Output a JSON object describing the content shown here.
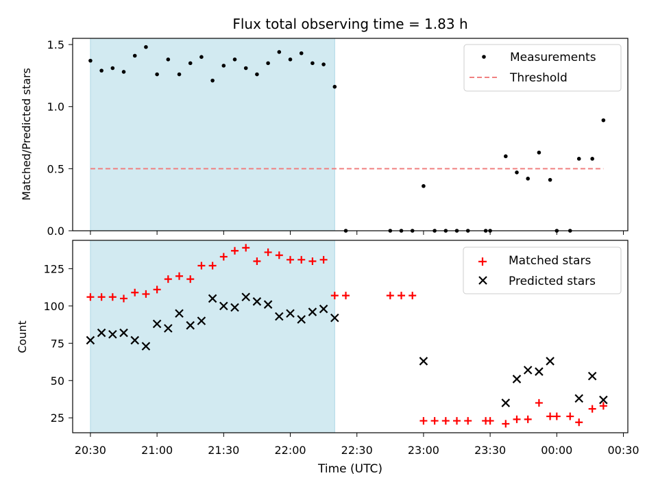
{
  "figure": {
    "title": "Flux total observing time = 1.83 h",
    "xlabel": "Time (UTC)"
  },
  "colors": {
    "shade": "#add8e6",
    "measurements": "#000000",
    "threshold": "#f08080",
    "matched": "#ff0000",
    "predicted": "#000000"
  },
  "chart_data": [
    {
      "type": "scatter",
      "panel": "top",
      "ylabel": "Matched/Predicted stars",
      "ylim": [
        0,
        1.55
      ],
      "yticks": [
        0.0,
        0.5,
        1.0,
        1.5
      ],
      "yticklabels": [
        "0.0",
        "0.5",
        "1.0",
        "1.5"
      ],
      "xlim": [
        "20:22",
        "00:32"
      ],
      "shaded_interval": [
        "20:30",
        "22:20"
      ],
      "legend": {
        "position": "top-right",
        "entries": [
          "Measurements",
          "Threshold"
        ]
      },
      "series": [
        {
          "name": "Measurements",
          "marker": "dot",
          "points": [
            [
              "20:30",
              1.37
            ],
            [
              "20:35",
              1.29
            ],
            [
              "20:40",
              1.31
            ],
            [
              "20:45",
              1.28
            ],
            [
              "20:50",
              1.41
            ],
            [
              "20:55",
              1.48
            ],
            [
              "21:00",
              1.26
            ],
            [
              "21:05",
              1.38
            ],
            [
              "21:10",
              1.26
            ],
            [
              "21:15",
              1.35
            ],
            [
              "21:20",
              1.4
            ],
            [
              "21:25",
              1.21
            ],
            [
              "21:30",
              1.33
            ],
            [
              "21:35",
              1.38
            ],
            [
              "21:40",
              1.31
            ],
            [
              "21:45",
              1.26
            ],
            [
              "21:50",
              1.35
            ],
            [
              "21:55",
              1.44
            ],
            [
              "22:00",
              1.38
            ],
            [
              "22:05",
              1.43
            ],
            [
              "22:10",
              1.35
            ],
            [
              "22:15",
              1.34
            ],
            [
              "22:20",
              1.16
            ],
            [
              "22:25",
              0.0
            ],
            [
              "22:45",
              0.0
            ],
            [
              "22:50",
              0.0
            ],
            [
              "22:55",
              0.0
            ],
            [
              "23:00",
              0.36
            ],
            [
              "23:05",
              0.0
            ],
            [
              "23:10",
              0.0
            ],
            [
              "23:15",
              0.0
            ],
            [
              "23:20",
              0.0
            ],
            [
              "23:28",
              0.0
            ],
            [
              "23:30",
              0.0
            ],
            [
              "23:37",
              0.6
            ],
            [
              "23:42",
              0.47
            ],
            [
              "23:47",
              0.42
            ],
            [
              "23:52",
              0.63
            ],
            [
              "23:57",
              0.41
            ],
            [
              "00:00",
              0.0
            ],
            [
              "00:06",
              0.0
            ],
            [
              "00:10",
              0.58
            ],
            [
              "00:16",
              0.58
            ],
            [
              "00:21",
              0.89
            ]
          ]
        },
        {
          "name": "Threshold",
          "marker": "dashed-line",
          "value": 0.5,
          "x_range": [
            "20:30",
            "00:21"
          ]
        }
      ]
    },
    {
      "type": "scatter",
      "panel": "bottom",
      "ylabel": "Count",
      "ylim": [
        15,
        144
      ],
      "yticks": [
        25,
        50,
        75,
        100,
        125
      ],
      "yticklabels": [
        "25",
        "50",
        "75",
        "100",
        "125"
      ],
      "xlim": [
        "20:22",
        "00:32"
      ],
      "xticks": [
        "20:30",
        "21:00",
        "21:30",
        "22:00",
        "22:30",
        "23:00",
        "23:30",
        "00:00",
        "00:30"
      ],
      "shaded_interval": [
        "20:30",
        "22:20"
      ],
      "legend": {
        "position": "top-right",
        "entries": [
          "Matched stars",
          "Predicted stars"
        ]
      },
      "series": [
        {
          "name": "Matched stars",
          "marker": "plus",
          "points": [
            [
              "20:30",
              106
            ],
            [
              "20:35",
              106
            ],
            [
              "20:40",
              106
            ],
            [
              "20:45",
              105
            ],
            [
              "20:50",
              109
            ],
            [
              "20:55",
              108
            ],
            [
              "21:00",
              111
            ],
            [
              "21:05",
              118
            ],
            [
              "21:10",
              120
            ],
            [
              "21:15",
              118
            ],
            [
              "21:20",
              127
            ],
            [
              "21:25",
              127
            ],
            [
              "21:30",
              133
            ],
            [
              "21:35",
              137
            ],
            [
              "21:40",
              139
            ],
            [
              "21:45",
              130
            ],
            [
              "21:50",
              136
            ],
            [
              "21:55",
              134
            ],
            [
              "22:00",
              131
            ],
            [
              "22:05",
              131
            ],
            [
              "22:10",
              130
            ],
            [
              "22:15",
              131
            ],
            [
              "22:20",
              107
            ],
            [
              "22:25",
              107
            ],
            [
              "22:45",
              107
            ],
            [
              "22:50",
              107
            ],
            [
              "22:55",
              107
            ],
            [
              "23:00",
              23
            ],
            [
              "23:05",
              23
            ],
            [
              "23:10",
              23
            ],
            [
              "23:15",
              23
            ],
            [
              "23:20",
              23
            ],
            [
              "23:28",
              23
            ],
            [
              "23:30",
              23
            ],
            [
              "23:37",
              21
            ],
            [
              "23:42",
              24
            ],
            [
              "23:47",
              24
            ],
            [
              "23:52",
              35
            ],
            [
              "23:57",
              26
            ],
            [
              "00:00",
              26
            ],
            [
              "00:06",
              26
            ],
            [
              "00:10",
              22
            ],
            [
              "00:16",
              31
            ],
            [
              "00:21",
              33
            ]
          ]
        },
        {
          "name": "Predicted stars",
          "marker": "x",
          "points": [
            [
              "20:30",
              77
            ],
            [
              "20:35",
              82
            ],
            [
              "20:40",
              81
            ],
            [
              "20:45",
              82
            ],
            [
              "20:50",
              77
            ],
            [
              "20:55",
              73
            ],
            [
              "21:00",
              88
            ],
            [
              "21:05",
              85
            ],
            [
              "21:10",
              95
            ],
            [
              "21:15",
              87
            ],
            [
              "21:20",
              90
            ],
            [
              "21:25",
              105
            ],
            [
              "21:30",
              100
            ],
            [
              "21:35",
              99
            ],
            [
              "21:40",
              106
            ],
            [
              "21:45",
              103
            ],
            [
              "21:50",
              101
            ],
            [
              "21:55",
              93
            ],
            [
              "22:00",
              95
            ],
            [
              "22:05",
              91
            ],
            [
              "22:10",
              96
            ],
            [
              "22:15",
              98
            ],
            [
              "22:20",
              92
            ],
            [
              "23:00",
              63
            ],
            [
              "23:37",
              35
            ],
            [
              "23:42",
              51
            ],
            [
              "23:47",
              57
            ],
            [
              "23:52",
              56
            ],
            [
              "23:57",
              63
            ],
            [
              "00:10",
              38
            ],
            [
              "00:16",
              53
            ],
            [
              "00:21",
              37
            ]
          ]
        }
      ]
    }
  ]
}
